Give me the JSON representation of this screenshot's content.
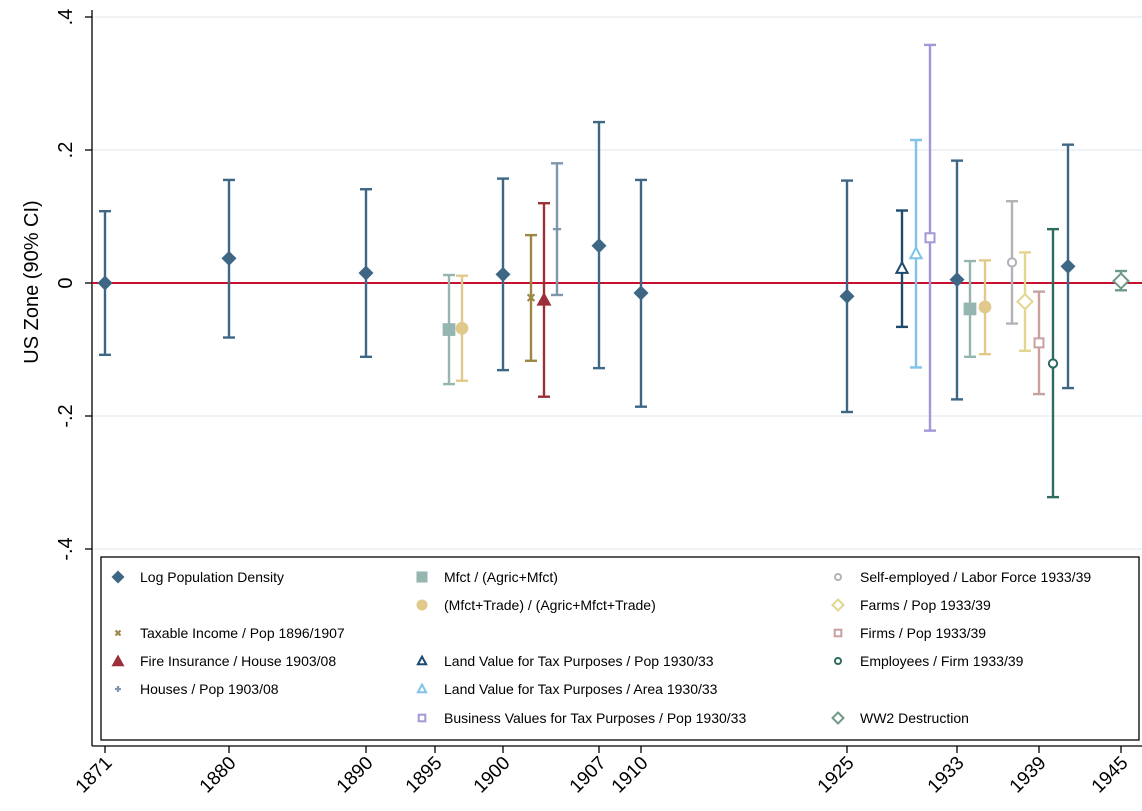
{
  "chart_data": {
    "type": "scatter",
    "title": "",
    "xlabel": "",
    "ylabel": "US Zone (90% CI)",
    "ylim": [
      -0.5,
      0.4
    ],
    "yticks": [
      {
        "value": 0.4,
        "label": ".4"
      },
      {
        "value": 0.2,
        "label": ".2"
      },
      {
        "value": 0,
        "label": "0"
      },
      {
        "value": -0.2,
        "label": "-.2"
      },
      {
        "value": -0.4,
        "label": "-.4"
      }
    ],
    "xtick_labels": [
      "1871",
      "1880",
      "1890",
      "1895",
      "1900",
      "1907",
      "1910",
      "1925",
      "1933",
      "1939",
      "1945"
    ],
    "reference_line": {
      "y": 0,
      "color": "#c8102e"
    },
    "grid": true,
    "legend_position": "bottom-inside",
    "series": [
      {
        "name": "Log Population Density",
        "marker": "diamond",
        "color": "#3d6785",
        "points": [
          {
            "x": "1871",
            "y": 0.0,
            "lo": -0.108,
            "hi": 0.108
          },
          {
            "x": "1880",
            "y": 0.037,
            "lo": -0.082,
            "hi": 0.155
          },
          {
            "x": "1890",
            "y": 0.015,
            "lo": -0.111,
            "hi": 0.141
          },
          {
            "x": "1900",
            "y": 0.013,
            "lo": -0.131,
            "hi": 0.157
          },
          {
            "x": "1907",
            "y": 0.056,
            "lo": -0.128,
            "hi": 0.242
          },
          {
            "x": "1910",
            "y": -0.015,
            "lo": -0.186,
            "hi": 0.155
          },
          {
            "x": "1925",
            "y": -0.02,
            "lo": -0.194,
            "hi": 0.154
          },
          {
            "x": "1933",
            "y": 0.005,
            "lo": -0.175,
            "hi": 0.184
          },
          {
            "x": "1939 (post)",
            "y": 0.025,
            "lo": -0.158,
            "hi": 0.208
          }
        ]
      },
      {
        "name": "Mfct / (Agric+Mfct)",
        "marker": "square",
        "color": "#95b5b0",
        "points": [
          {
            "x": "1895",
            "y": -0.07,
            "lo": -0.152,
            "hi": 0.012
          },
          {
            "x": "1933",
            "y": -0.039,
            "lo": -0.111,
            "hi": 0.033
          }
        ]
      },
      {
        "name": "(Mfct+Trade) / (Agric+Mfct+Trade)",
        "marker": "circle",
        "color": "#e0c98a",
        "points": [
          {
            "x": "1895",
            "y": -0.068,
            "lo": -0.147,
            "hi": 0.011
          },
          {
            "x": "1933",
            "y": -0.036,
            "lo": -0.107,
            "hi": 0.034
          }
        ]
      },
      {
        "name": "Taxable Income / Pop 1896/1907",
        "marker": "x",
        "color": "#9c8747",
        "points": [
          {
            "x": "1900",
            "y": -0.022,
            "lo": -0.117,
            "hi": 0.072
          }
        ]
      },
      {
        "name": "Fire Insurance / House 1903/08",
        "marker": "triangle",
        "color": "#9c2f3a",
        "points": [
          {
            "x": "1900",
            "y": -0.025,
            "lo": -0.171,
            "hi": 0.12
          }
        ]
      },
      {
        "name": "Houses / Pop 1903/08",
        "marker": "plus",
        "color": "#7e97ad",
        "points": [
          {
            "x": "1900",
            "y": 0.081,
            "lo": -0.018,
            "hi": 0.18
          }
        ]
      },
      {
        "name": "Land Value for Tax Purposes / Pop 1930/33",
        "marker": "triangle-open",
        "color": "#1e4a6e",
        "points": [
          {
            "x": "1925",
            "y": 0.022,
            "lo": -0.066,
            "hi": 0.109
          }
        ]
      },
      {
        "name": "Land Value for Tax Purposes / Area 1930/33",
        "marker": "triangle-open",
        "color": "#7fc4e8",
        "points": [
          {
            "x": "1925",
            "y": 0.044,
            "lo": -0.127,
            "hi": 0.215
          }
        ]
      },
      {
        "name": "Business Values for Tax Purposes / Pop 1930/33",
        "marker": "square-open",
        "color": "#a596d8",
        "points": [
          {
            "x": "1925",
            "y": 0.068,
            "lo": -0.222,
            "hi": 0.358
          }
        ]
      },
      {
        "name": "Self-employed / Labor Force 1933/39",
        "marker": "circle-open",
        "color": "#b3b3b3",
        "points": [
          {
            "x": "1933",
            "y": 0.031,
            "lo": -0.061,
            "hi": 0.123
          }
        ]
      },
      {
        "name": "Farms / Pop 1933/39",
        "marker": "diamond-open",
        "color": "#e3d68f",
        "points": [
          {
            "x": "1933",
            "y": -0.028,
            "lo": -0.102,
            "hi": 0.046
          }
        ]
      },
      {
        "name": "Firms / Pop 1933/39",
        "marker": "square-open",
        "color": "#c9a0a0",
        "points": [
          {
            "x": "1939",
            "y": -0.09,
            "lo": -0.167,
            "hi": -0.013
          }
        ]
      },
      {
        "name": "Employees / Firm 1933/39",
        "marker": "circle-open",
        "color": "#2f6b5e",
        "points": [
          {
            "x": "1939",
            "y": -0.121,
            "lo": -0.322,
            "hi": 0.081
          }
        ]
      },
      {
        "name": "WW2 Destruction",
        "marker": "diamond-open",
        "color": "#6f9a87",
        "points": [
          {
            "x": "1945",
            "y": 0.003,
            "lo": -0.011,
            "hi": 0.018
          }
        ]
      }
    ]
  }
}
